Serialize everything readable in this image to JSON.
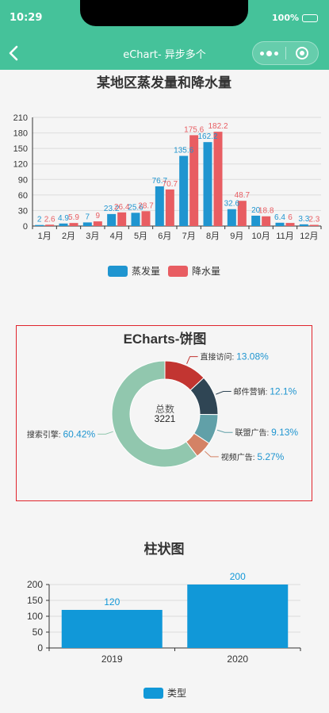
{
  "status_bar": {
    "time": "10:29",
    "battery": "100%"
  },
  "nav": {
    "title": "eChart- 异步多个"
  },
  "colors": {
    "header": "#45c29a",
    "evaporation": "#1f95d0",
    "rainfall": "#e85d62",
    "bar2": "#1198d8"
  },
  "chart_data": [
    {
      "type": "bar",
      "title": "某地区蒸发量和降水量",
      "categories": [
        "1月",
        "2月",
        "3月",
        "4月",
        "5月",
        "6月",
        "7月",
        "8月",
        "9月",
        "10月",
        "11月",
        "12月"
      ],
      "series": [
        {
          "name": "蒸发量",
          "values": [
            2.0,
            4.9,
            7.0,
            23.2,
            25.6,
            76.7,
            135.6,
            162.2,
            32.6,
            20.0,
            6.4,
            3.3
          ]
        },
        {
          "name": "降水量",
          "values": [
            2.6,
            5.9,
            9.0,
            26.4,
            28.7,
            70.7,
            175.6,
            182.2,
            48.7,
            18.8,
            6.0,
            2.3
          ]
        }
      ],
      "value_labels": [
        [
          "2",
          "4.9",
          "7",
          "23.2",
          "25.6",
          "76.7",
          "135.6",
          "162.2",
          "32.6",
          "20",
          "6.4",
          "3.3"
        ],
        [
          "2.6",
          "5.9",
          "9",
          "26.4",
          "28.7",
          "70.7",
          "175.6",
          "182.2",
          "48.7",
          "18.8",
          "6",
          "2.3"
        ]
      ],
      "yticks": [
        "0",
        "30",
        "60",
        "90",
        "120",
        "150",
        "180",
        "210"
      ],
      "ylim": [
        0,
        210
      ],
      "grid": true,
      "legend": "bottom"
    },
    {
      "type": "pie",
      "title": "ECharts-饼图",
      "center_label": "总数",
      "center_value": "3221",
      "slices": [
        {
          "name": "直接访问",
          "value": 13.08,
          "label": "13.08%",
          "color": "#c23531"
        },
        {
          "name": "邮件营销",
          "value": 12.1,
          "label": "12.1%",
          "color": "#2f4554"
        },
        {
          "name": "联盟广告",
          "value": 9.13,
          "label": "9.13%",
          "color": "#61a0a8"
        },
        {
          "name": "视频广告",
          "value": 5.27,
          "label": "5.27%",
          "color": "#d48265"
        },
        {
          "name": "搜索引擎",
          "value": 60.42,
          "label": "60.42%",
          "color": "#91c7ae"
        }
      ]
    },
    {
      "type": "bar",
      "title": "柱状图",
      "categories": [
        "2019",
        "2020"
      ],
      "series": [
        {
          "name": "类型",
          "values": [
            120,
            200
          ]
        }
      ],
      "value_labels": [
        "120",
        "200"
      ],
      "yticks": [
        "0",
        "50",
        "100",
        "150",
        "200"
      ],
      "ylim": [
        0,
        200
      ],
      "grid": true,
      "legend": "bottom"
    }
  ]
}
